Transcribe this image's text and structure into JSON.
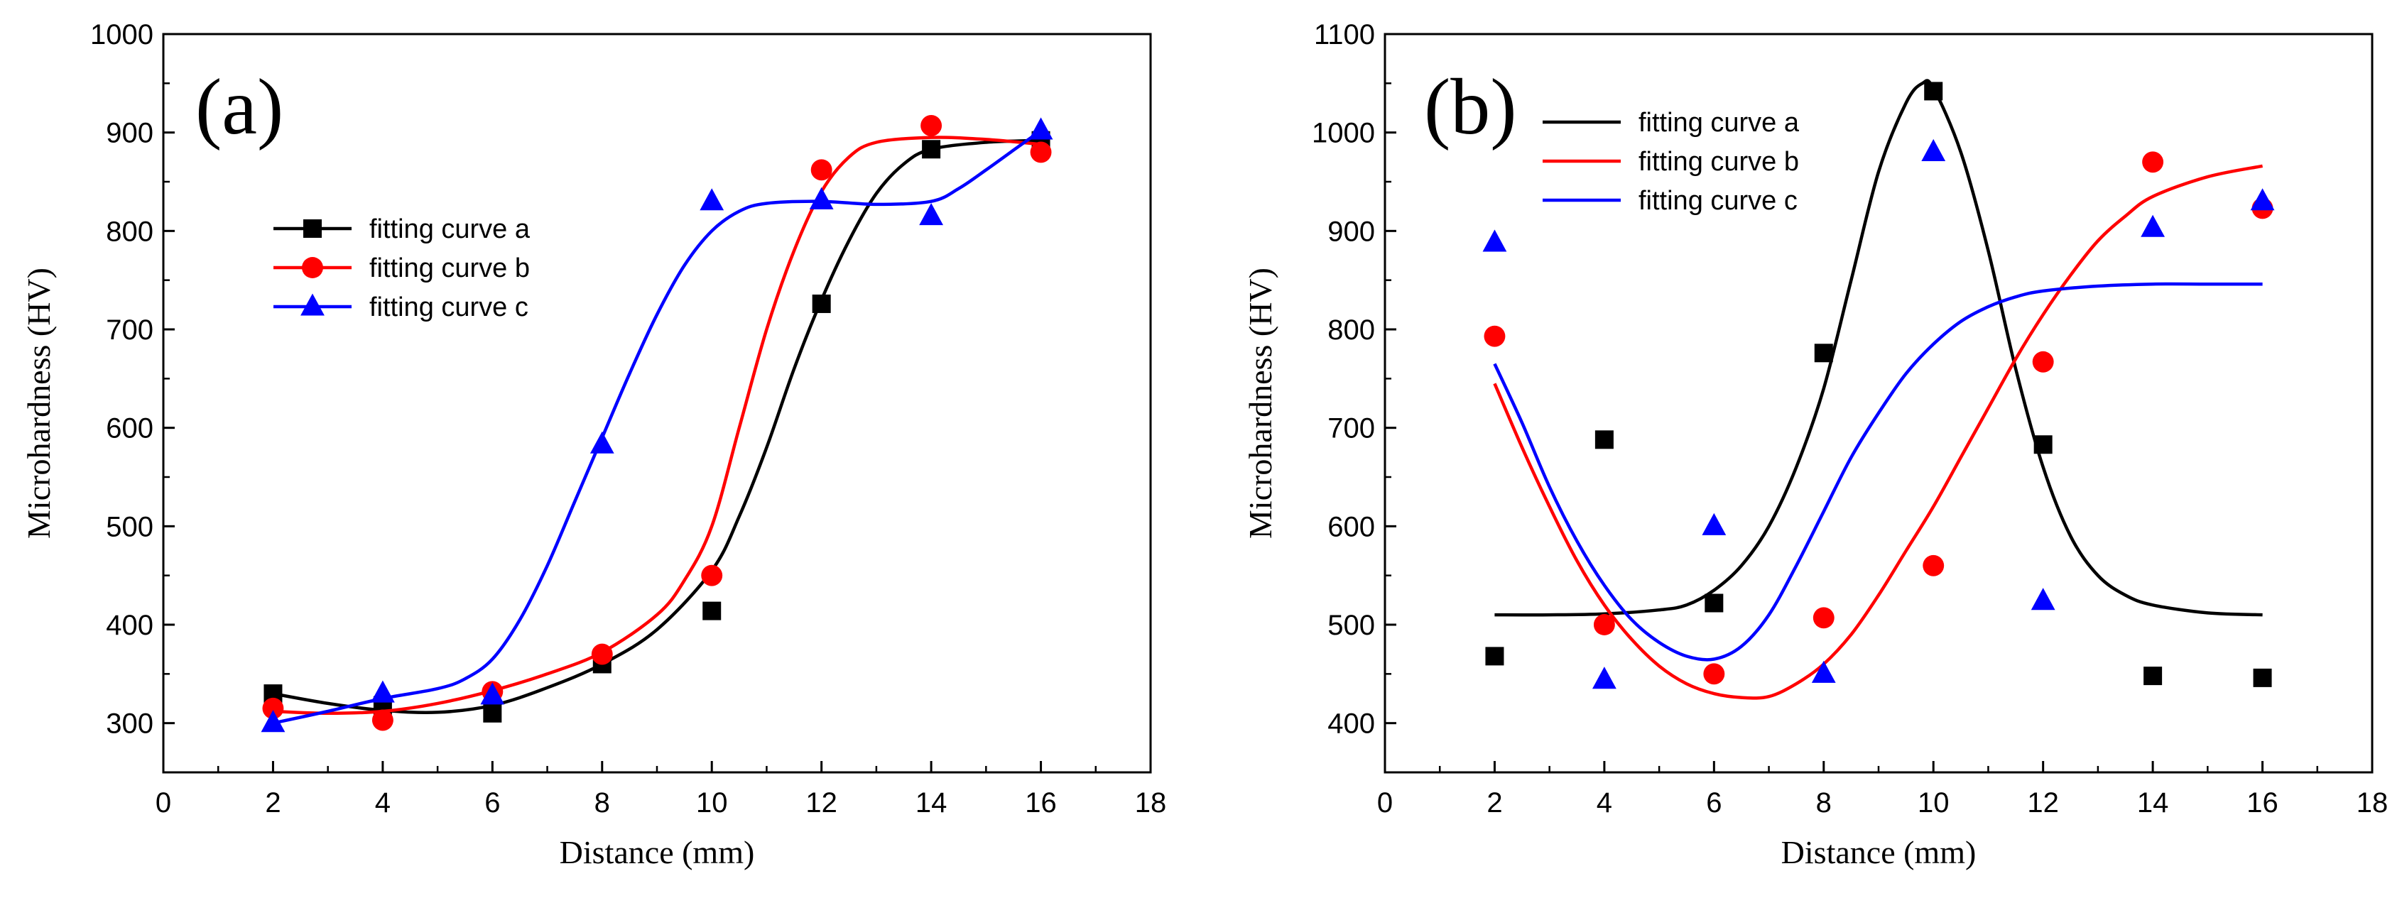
{
  "chart_data": [
    {
      "type": "line",
      "panel_label": "(a)",
      "xlabel": "Distance (mm)",
      "ylabel": "Microhardness (HV)",
      "xlim": [
        0,
        18
      ],
      "ylim": [
        250,
        1000
      ],
      "x_ticks": [
        0,
        2,
        4,
        6,
        8,
        10,
        12,
        14,
        16,
        18
      ],
      "y_ticks": [
        300,
        400,
        500,
        600,
        700,
        800,
        900,
        1000
      ],
      "grid": false,
      "legend_position": "center-left",
      "series": [
        {
          "name": "fitting curve a",
          "color": "#000000",
          "marker": "square",
          "points": [
            [
              2,
              330
            ],
            [
              4,
              318
            ],
            [
              6,
              310
            ],
            [
              8,
              360
            ],
            [
              10,
              414
            ],
            [
              12,
              726
            ],
            [
              14,
              883
            ],
            [
              16,
              892
            ]
          ],
          "curve": [
            [
              2,
              330
            ],
            [
              3,
              320
            ],
            [
              4,
              313
            ],
            [
              5,
              311
            ],
            [
              6,
              318
            ],
            [
              7,
              336
            ],
            [
              8,
              360
            ],
            [
              9,
              395
            ],
            [
              10,
              455
            ],
            [
              10.5,
              510
            ],
            [
              11,
              580
            ],
            [
              11.5,
              660
            ],
            [
              12,
              730
            ],
            [
              12.5,
              790
            ],
            [
              13,
              838
            ],
            [
              13.5,
              868
            ],
            [
              14,
              883
            ],
            [
              15,
              890
            ],
            [
              16,
              892
            ]
          ]
        },
        {
          "name": "fitting curve b",
          "color": "#ff0000",
          "marker": "circle",
          "points": [
            [
              2,
              315
            ],
            [
              4,
              303
            ],
            [
              6,
              332
            ],
            [
              8,
              370
            ],
            [
              10,
              450
            ],
            [
              12,
              862
            ],
            [
              14,
              907
            ],
            [
              16,
              880
            ]
          ],
          "curve": [
            [
              2,
              312
            ],
            [
              3,
              310
            ],
            [
              4,
              312
            ],
            [
              5,
              320
            ],
            [
              6,
              333
            ],
            [
              7,
              350
            ],
            [
              8,
              372
            ],
            [
              9,
              410
            ],
            [
              9.5,
              445
            ],
            [
              10,
              500
            ],
            [
              10.5,
              600
            ],
            [
              11,
              700
            ],
            [
              11.5,
              780
            ],
            [
              12,
              840
            ],
            [
              12.5,
              875
            ],
            [
              13,
              890
            ],
            [
              14,
              895
            ],
            [
              15,
              893
            ],
            [
              16,
              888
            ]
          ]
        },
        {
          "name": "fitting curve c",
          "color": "#0000ff",
          "marker": "triangle",
          "points": [
            [
              2,
              300
            ],
            [
              4,
              330
            ],
            [
              6,
              328
            ],
            [
              8,
              583
            ],
            [
              10,
              830
            ],
            [
              12,
              831
            ],
            [
              14,
              815
            ],
            [
              16,
              902
            ]
          ],
          "curve": [
            [
              2,
              300
            ],
            [
              3,
              312
            ],
            [
              4,
              325
            ],
            [
              5,
              335
            ],
            [
              5.5,
              345
            ],
            [
              6,
              365
            ],
            [
              6.5,
              405
            ],
            [
              7,
              460
            ],
            [
              7.5,
              525
            ],
            [
              8,
              590
            ],
            [
              8.5,
              655
            ],
            [
              9,
              715
            ],
            [
              9.5,
              765
            ],
            [
              10,
              800
            ],
            [
              10.5,
              820
            ],
            [
              11,
              828
            ],
            [
              12,
              830
            ],
            [
              13,
              827
            ],
            [
              14,
              830
            ],
            [
              14.5,
              843
            ],
            [
              15,
              862
            ],
            [
              15.5,
              882
            ],
            [
              16,
              902
            ]
          ]
        }
      ]
    },
    {
      "type": "line",
      "panel_label": "(b)",
      "xlabel": "Distance (mm)",
      "ylabel": "Microhardness (HV)",
      "xlim": [
        0,
        18
      ],
      "ylim": [
        350,
        1100
      ],
      "x_ticks": [
        0,
        2,
        4,
        6,
        8,
        10,
        12,
        14,
        16,
        18
      ],
      "y_ticks": [
        400,
        500,
        600,
        700,
        800,
        900,
        1000,
        1100
      ],
      "grid": false,
      "legend_position": "top-left",
      "series": [
        {
          "name": "fitting curve a",
          "color": "#000000",
          "marker": "square",
          "points": [
            [
              2,
              468
            ],
            [
              4,
              688
            ],
            [
              6,
              522
            ],
            [
              8,
              776
            ],
            [
              10,
              1042
            ],
            [
              12,
              683
            ],
            [
              14,
              448
            ],
            [
              16,
              446
            ]
          ],
          "curve": [
            [
              2,
              510
            ],
            [
              3,
              510
            ],
            [
              4,
              511
            ],
            [
              5,
              515
            ],
            [
              5.5,
              520
            ],
            [
              6,
              535
            ],
            [
              6.5,
              560
            ],
            [
              7,
              600
            ],
            [
              7.5,
              660
            ],
            [
              8,
              740
            ],
            [
              8.5,
              850
            ],
            [
              9,
              960
            ],
            [
              9.5,
              1030
            ],
            [
              9.8,
              1050
            ],
            [
              10,
              1045
            ],
            [
              10.5,
              980
            ],
            [
              11,
              880
            ],
            [
              11.5,
              760
            ],
            [
              12,
              660
            ],
            [
              12.5,
              590
            ],
            [
              13,
              550
            ],
            [
              13.5,
              530
            ],
            [
              14,
              520
            ],
            [
              15,
              512
            ],
            [
              16,
              510
            ]
          ]
        },
        {
          "name": "fitting curve b",
          "color": "#ff0000",
          "marker": "circle",
          "points": [
            [
              2,
              793
            ],
            [
              4,
              500
            ],
            [
              6,
              450
            ],
            [
              8,
              507
            ],
            [
              10,
              560
            ],
            [
              12,
              767
            ],
            [
              14,
              970
            ],
            [
              16,
              923
            ]
          ],
          "curve": [
            [
              2,
              745
            ],
            [
              2.5,
              680
            ],
            [
              3,
              620
            ],
            [
              3.5,
              565
            ],
            [
              4,
              520
            ],
            [
              4.5,
              485
            ],
            [
              5,
              458
            ],
            [
              5.5,
              440
            ],
            [
              6,
              430
            ],
            [
              6.5,
              426
            ],
            [
              7,
              427
            ],
            [
              7.5,
              440
            ],
            [
              8,
              460
            ],
            [
              8.5,
              490
            ],
            [
              9,
              530
            ],
            [
              9.5,
              575
            ],
            [
              10,
              620
            ],
            [
              10.5,
              670
            ],
            [
              11,
              720
            ],
            [
              11.5,
              770
            ],
            [
              12,
              815
            ],
            [
              12.5,
              855
            ],
            [
              13,
              890
            ],
            [
              13.5,
              915
            ],
            [
              14,
              935
            ],
            [
              15,
              955
            ],
            [
              16,
              966
            ]
          ]
        },
        {
          "name": "fitting curve c",
          "color": "#0000ff",
          "marker": "triangle",
          "points": [
            [
              2,
              888
            ],
            [
              4,
              444
            ],
            [
              6,
              600
            ],
            [
              8,
              450
            ],
            [
              10,
              980
            ],
            [
              12,
              524
            ],
            [
              14,
              903
            ],
            [
              16,
              930
            ]
          ],
          "curve": [
            [
              2,
              765
            ],
            [
              2.5,
              705
            ],
            [
              3,
              640
            ],
            [
              3.5,
              585
            ],
            [
              4,
              540
            ],
            [
              4.5,
              505
            ],
            [
              5,
              482
            ],
            [
              5.5,
              468
            ],
            [
              6,
              465
            ],
            [
              6.5,
              478
            ],
            [
              7,
              510
            ],
            [
              7.5,
              560
            ],
            [
              8,
              615
            ],
            [
              8.5,
              670
            ],
            [
              9,
              715
            ],
            [
              9.5,
              755
            ],
            [
              10,
              785
            ],
            [
              10.5,
              808
            ],
            [
              11,
              823
            ],
            [
              11.5,
              833
            ],
            [
              12,
              839
            ],
            [
              13,
              844
            ],
            [
              14,
              846
            ],
            [
              15,
              846
            ],
            [
              16,
              846
            ]
          ]
        }
      ]
    }
  ]
}
